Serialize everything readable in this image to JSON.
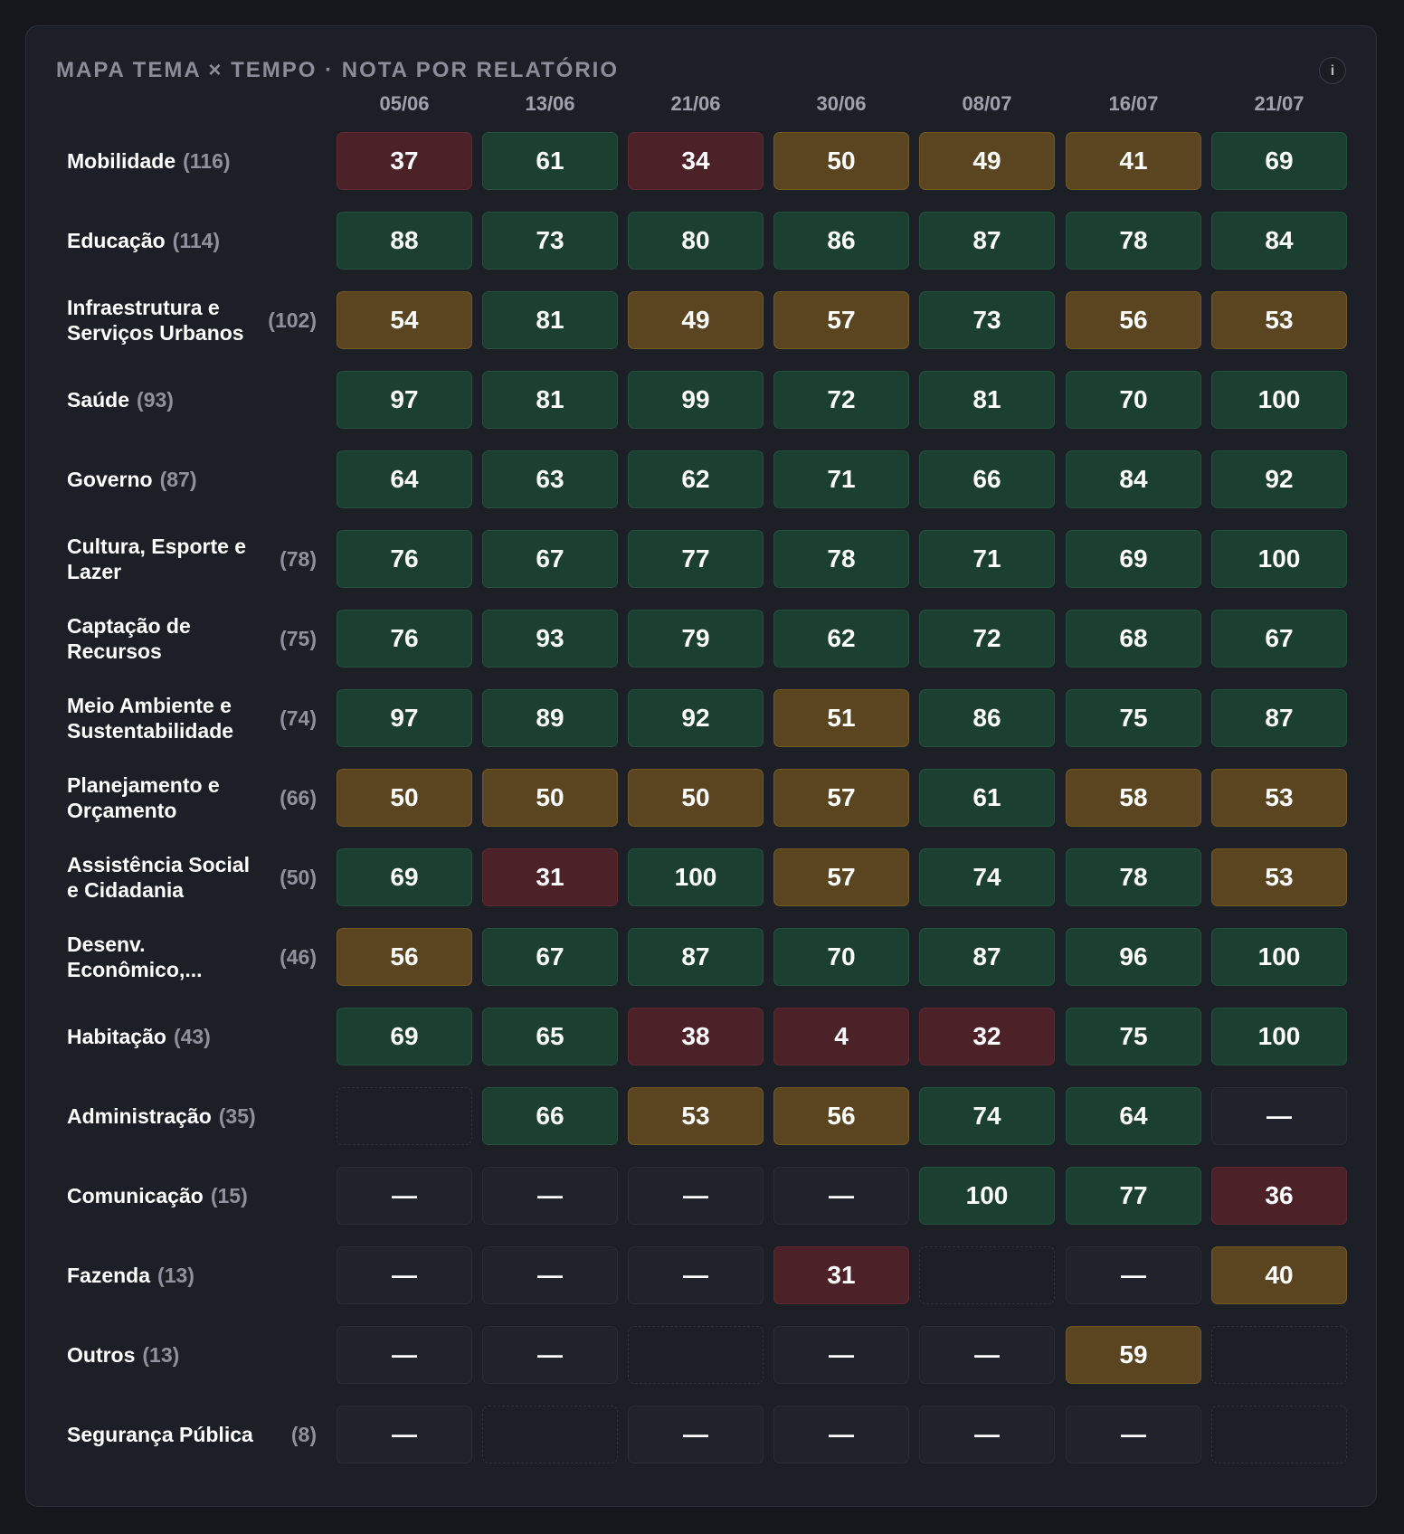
{
  "chart_data": {
    "type": "heatmap",
    "title": "MAPA TEMA × TEMPO · NOTA POR RELATÓRIO",
    "info_label": "i",
    "columns": [
      "05/06",
      "13/06",
      "21/06",
      "30/06",
      "08/07",
      "16/07",
      "21/07"
    ],
    "rows": [
      {
        "name": "Mobilidade",
        "count": "(116)",
        "values": [
          "37",
          "61",
          "34",
          "50",
          "49",
          "41",
          "69"
        ]
      },
      {
        "name": "Educação",
        "count": "(114)",
        "values": [
          "88",
          "73",
          "80",
          "86",
          "87",
          "78",
          "84"
        ]
      },
      {
        "name": "Infraestrutura e Serviços Urbanos",
        "count": "(102)",
        "values": [
          "54",
          "81",
          "49",
          "57",
          "73",
          "56",
          "53"
        ]
      },
      {
        "name": "Saúde",
        "count": "(93)",
        "values": [
          "97",
          "81",
          "99",
          "72",
          "81",
          "70",
          "100"
        ]
      },
      {
        "name": "Governo",
        "count": "(87)",
        "values": [
          "64",
          "63",
          "62",
          "71",
          "66",
          "84",
          "92"
        ]
      },
      {
        "name": "Cultura, Esporte e Lazer",
        "count": "(78)",
        "values": [
          "76",
          "67",
          "77",
          "78",
          "71",
          "69",
          "100"
        ]
      },
      {
        "name": "Captação de Recursos",
        "count": "(75)",
        "values": [
          "76",
          "93",
          "79",
          "62",
          "72",
          "68",
          "67"
        ]
      },
      {
        "name": "Meio Ambiente e Sustentabilidade",
        "count": "(74)",
        "values": [
          "97",
          "89",
          "92",
          "51",
          "86",
          "75",
          "87"
        ]
      },
      {
        "name": "Planejamento e Orçamento",
        "count": "(66)",
        "values": [
          "50",
          "50",
          "50",
          "57",
          "61",
          "58",
          "53"
        ]
      },
      {
        "name": "Assistência Social e Cidadania",
        "count": "(50)",
        "values": [
          "69",
          "31",
          "100",
          "57",
          "74",
          "78",
          "53"
        ]
      },
      {
        "name": "Desenv. Econômico,...",
        "count": "(46)",
        "values": [
          "56",
          "67",
          "87",
          "70",
          "87",
          "96",
          "100"
        ]
      },
      {
        "name": "Habitação",
        "count": "(43)",
        "values": [
          "69",
          "65",
          "38",
          "4",
          "32",
          "75",
          "100"
        ]
      },
      {
        "name": "Administração",
        "count": "(35)",
        "values": [
          "",
          "66",
          "53",
          "56",
          "74",
          "64",
          "—"
        ]
      },
      {
        "name": "Comunicação",
        "count": "(15)",
        "values": [
          "—",
          "—",
          "—",
          "—",
          "100",
          "77",
          "36"
        ]
      },
      {
        "name": "Fazenda",
        "count": "(13)",
        "values": [
          "—",
          "—",
          "—",
          "31",
          "",
          "—",
          "40"
        ]
      },
      {
        "name": "Outros",
        "count": "(13)",
        "values": [
          "—",
          "—",
          "",
          "—",
          "—",
          "59",
          ""
        ]
      },
      {
        "name": "Segurança Pública",
        "count": "(8)",
        "values": [
          "—",
          "",
          "—",
          "—",
          "—",
          "—",
          ""
        ]
      }
    ],
    "color_scale": {
      "good": "#1b3f30",
      "mid": "#5a4520",
      "bad": "#4c2127",
      "none": "#21232c"
    }
  }
}
